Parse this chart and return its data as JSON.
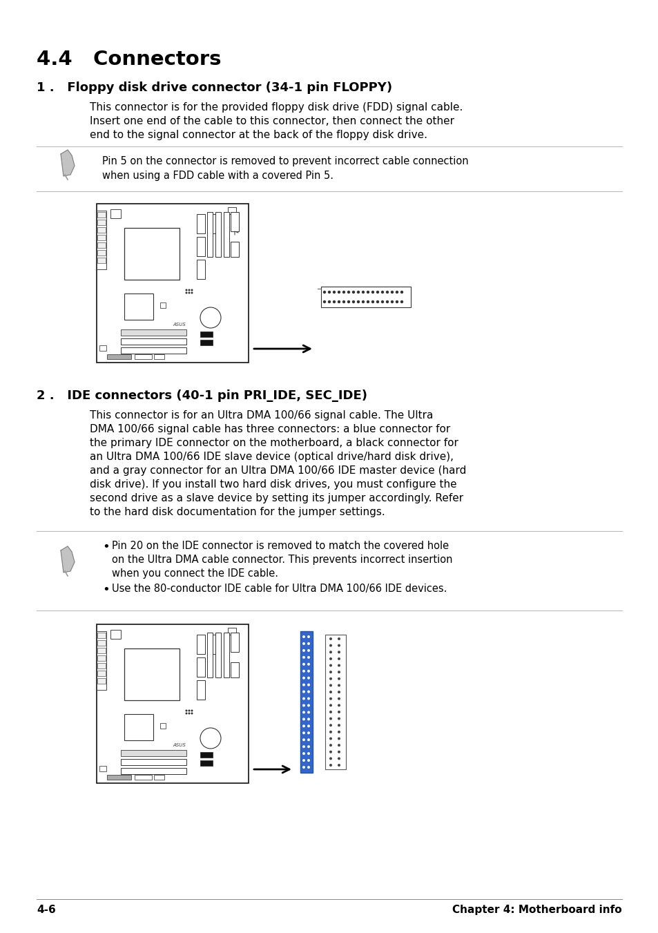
{
  "bg_color": "#ffffff",
  "title": "4.4   Connectors",
  "section1_heading": "1 .   Floppy disk drive connector (34-1 pin FLOPPY)",
  "section1_body_lines": [
    "This connector is for the provided floppy disk drive (FDD) signal cable.",
    "Insert one end of the cable to this connector, then connect the other",
    "end to the signal connector at the back of the floppy disk drive."
  ],
  "note1_text_lines": [
    "Pin 5 on the connector is removed to prevent incorrect cable connection",
    "when using a FDD cable with a covered Pin 5."
  ],
  "section2_heading": "2 .   IDE connectors (40-1 pin PRI_IDE, SEC_IDE)",
  "section2_body_lines": [
    "This connector is for an Ultra DMA 100/66 signal cable. The Ultra",
    "DMA 100/66 signal cable has three connectors: a blue connector for",
    "the primary IDE connector on the motherboard, a black connector for",
    "an Ultra DMA 100/66 IDE slave device (optical drive/hard disk drive),",
    "and a gray connector for an Ultra DMA 100/66 IDE master device (hard",
    "disk drive). If you install two hard disk drives, you must configure the",
    "second drive as a slave device by setting its jumper accordingly. Refer",
    "to the hard disk documentation for the jumper settings."
  ],
  "note2_bullet1_lines": [
    "Pin 20 on the IDE connector is removed to match the covered hole",
    "on the Ultra DMA cable connector. This prevents incorrect insertion",
    "when you connect the IDE cable."
  ],
  "note2_bullet2": "Use the 80-conductor IDE cable for Ultra DMA 100/66 IDE devices.",
  "footer_left": "4-6",
  "footer_right": "Chapter 4: Motherboard info",
  "text_color": "#000000",
  "line_color": "#bbbbbb",
  "ide_connector_color": "#3366cc"
}
